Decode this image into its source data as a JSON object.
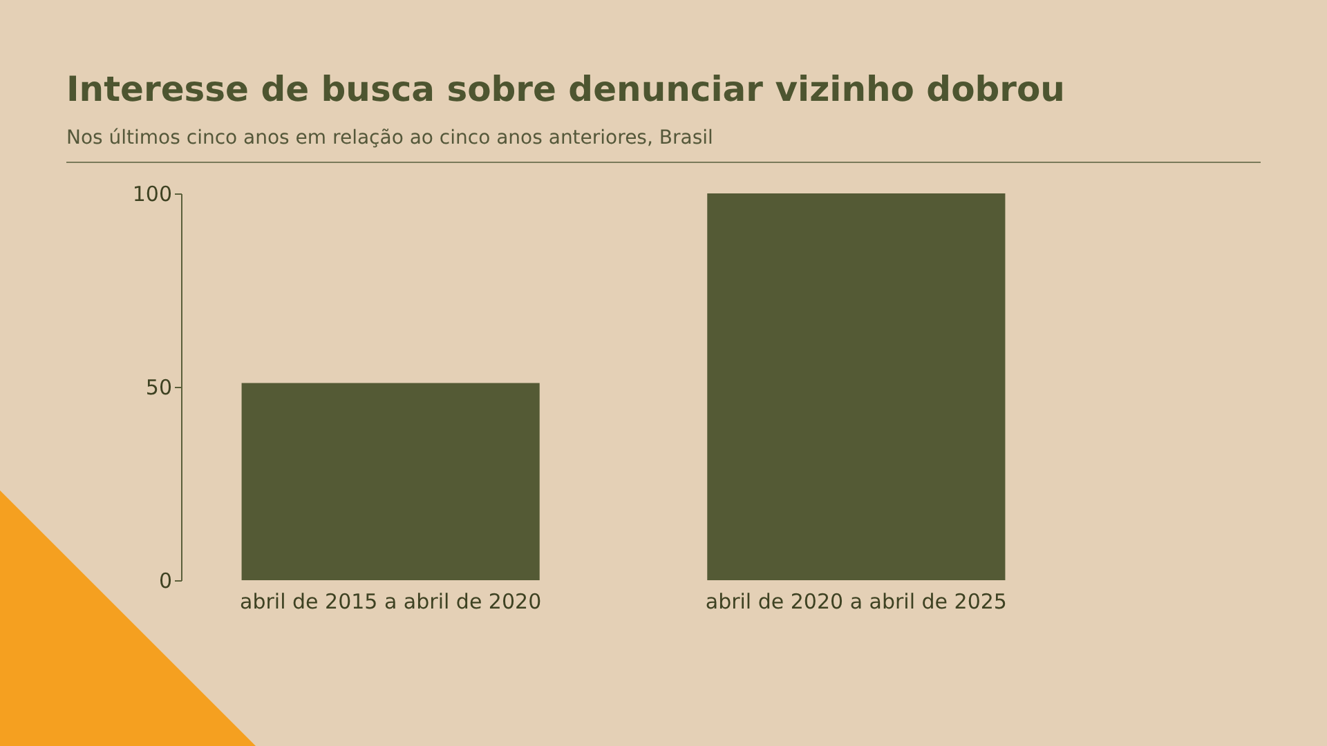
{
  "chart_data": {
    "type": "bar",
    "title": "Interesse de busca sobre denunciar vizinho dobrou",
    "subtitle": "Nos últimos cinco anos em relação ao cinco anos anteriores, Brasil",
    "categories": [
      "abril de 2015 a abril de 2020",
      "abril de 2020 a abril de 2025"
    ],
    "values": [
      51,
      100
    ],
    "color": "#545a35",
    "ylim": [
      0,
      100
    ],
    "yticks": [
      0,
      50,
      100
    ]
  }
}
